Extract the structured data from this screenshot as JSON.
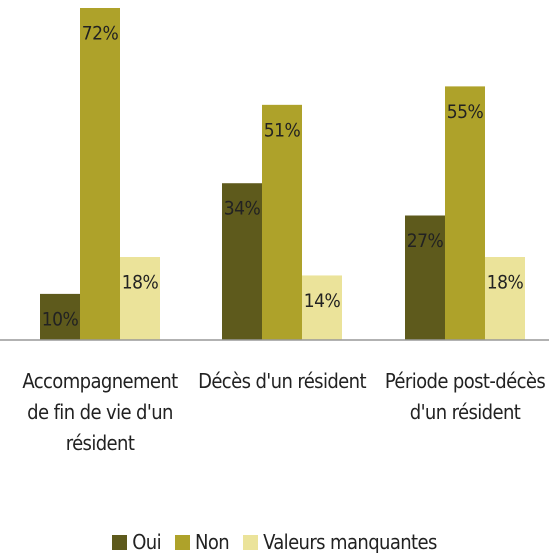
{
  "chart_data": {
    "type": "bar",
    "categories": [
      "Accompagnement de fin de vie d'un résident",
      "Décès d'un résident",
      "Période post-décès d'un résident"
    ],
    "series": [
      {
        "name": "Oui",
        "color": "#5e5a1c",
        "values": [
          10,
          34,
          27
        ],
        "value_labels": [
          "10%",
          "34%",
          "27%"
        ]
      },
      {
        "name": "Non",
        "color": "#aea22a",
        "values": [
          72,
          51,
          55
        ],
        "value_labels": [
          "72%",
          "51%",
          "55%"
        ]
      },
      {
        "name": "Valeurs manquantes",
        "color": "#ebe39a",
        "values": [
          18,
          14,
          18
        ],
        "value_labels": [
          "18%",
          "14%",
          "18%"
        ]
      }
    ],
    "legend": "bottom"
  }
}
